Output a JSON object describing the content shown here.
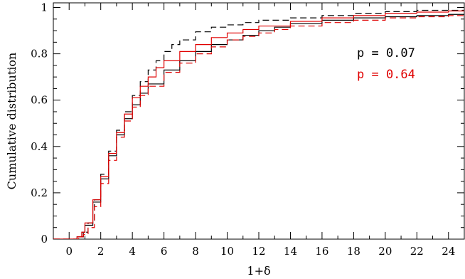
{
  "chart_data": {
    "type": "line",
    "xlabel": "1+δ",
    "ylabel": "Cumulative distribution",
    "xlim": [
      -1,
      25
    ],
    "ylim": [
      0,
      1.02
    ],
    "x_ticks": [
      0,
      2,
      4,
      6,
      8,
      10,
      12,
      14,
      16,
      18,
      20,
      22,
      24
    ],
    "y_ticks": [
      0,
      0.2,
      0.4,
      0.6,
      0.8,
      1
    ],
    "y_tick_labels": [
      "0",
      "0.2",
      "0.4",
      "0.6",
      "0.8",
      "1"
    ],
    "grid": false,
    "annotations": [
      {
        "text": "p  =  0.07",
        "color": "#000000"
      },
      {
        "text": "p  =  0.64",
        "color": "#e00000"
      }
    ],
    "series": [
      {
        "color": "#000000",
        "dash": "solid",
        "x": [
          0.2,
          0.5,
          0.8,
          1.0,
          1.5,
          2.0,
          2.5,
          3.0,
          3.5,
          4.0,
          4.5,
          5.0,
          6.0,
          7.0,
          8.0,
          9.0,
          10.0,
          11.0,
          12.0,
          13.0,
          14.0,
          16.0,
          18.0,
          20.0,
          22.0,
          24.0,
          25.0
        ],
        "y": [
          0.0,
          0.01,
          0.03,
          0.06,
          0.16,
          0.26,
          0.36,
          0.45,
          0.52,
          0.58,
          0.63,
          0.67,
          0.73,
          0.77,
          0.81,
          0.84,
          0.86,
          0.88,
          0.9,
          0.915,
          0.93,
          0.945,
          0.955,
          0.96,
          0.965,
          0.97,
          0.972
        ]
      },
      {
        "color": "#000000",
        "dash": "dashed",
        "x": [
          0.3,
          0.6,
          0.9,
          1.2,
          1.6,
          2.0,
          2.5,
          3.0,
          3.5,
          4.0,
          4.5,
          5.0,
          5.5,
          6.0,
          6.5,
          7.0,
          8.0,
          9.0,
          10.0,
          11.0,
          12.0,
          14.0,
          16.0,
          18.0,
          20.0,
          22.0,
          25.0
        ],
        "y": [
          0.0,
          0.01,
          0.03,
          0.07,
          0.17,
          0.28,
          0.38,
          0.47,
          0.55,
          0.62,
          0.68,
          0.73,
          0.77,
          0.81,
          0.84,
          0.86,
          0.895,
          0.915,
          0.925,
          0.935,
          0.945,
          0.955,
          0.965,
          0.975,
          0.982,
          0.988,
          0.99
        ]
      },
      {
        "color": "#e00000",
        "dash": "solid",
        "x": [
          0.2,
          0.5,
          0.8,
          1.0,
          1.5,
          2.0,
          2.5,
          3.0,
          3.5,
          4.0,
          4.5,
          5.0,
          5.5,
          6.0,
          7.0,
          8.0,
          9.0,
          10.0,
          11.0,
          12.0,
          14.0,
          16.0,
          18.0,
          20.0,
          22.0,
          24.0,
          25.0
        ],
        "y": [
          0.0,
          0.01,
          0.03,
          0.07,
          0.17,
          0.27,
          0.37,
          0.46,
          0.54,
          0.61,
          0.66,
          0.7,
          0.74,
          0.77,
          0.81,
          0.84,
          0.87,
          0.89,
          0.905,
          0.92,
          0.94,
          0.955,
          0.965,
          0.975,
          0.98,
          0.985,
          0.988
        ]
      },
      {
        "color": "#e00000",
        "dash": "dashed",
        "x": [
          0.3,
          0.6,
          0.9,
          1.2,
          1.6,
          2.0,
          2.5,
          3.0,
          3.5,
          4.0,
          4.5,
          5.0,
          6.0,
          7.0,
          8.0,
          9.0,
          10.0,
          11.0,
          12.0,
          13.0,
          14.0,
          16.0,
          18.0,
          20.0,
          22.0,
          24.0,
          25.0
        ],
        "y": [
          0.0,
          0.01,
          0.02,
          0.05,
          0.14,
          0.24,
          0.34,
          0.44,
          0.51,
          0.57,
          0.62,
          0.66,
          0.72,
          0.76,
          0.8,
          0.83,
          0.86,
          0.875,
          0.89,
          0.905,
          0.92,
          0.935,
          0.945,
          0.955,
          0.96,
          0.965,
          0.968
        ]
      }
    ]
  }
}
